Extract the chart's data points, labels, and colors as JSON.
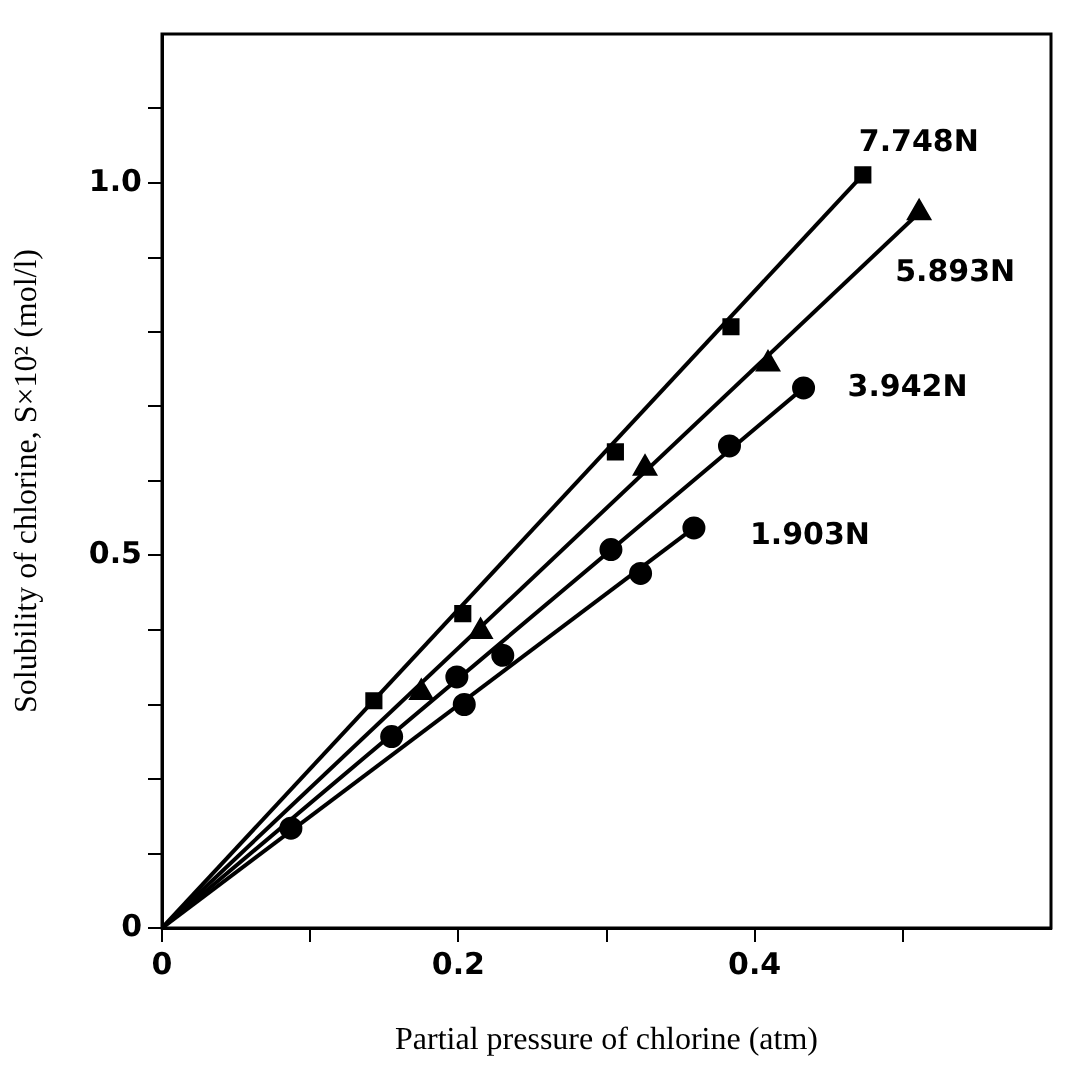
{
  "chart_data": {
    "type": "scatter",
    "xlabel": "Partial pressure of chlorine (atm)",
    "ylabel": "Solubility of chlorine, S×10² (mol/l)",
    "xlim": [
      0,
      0.6
    ],
    "ylim": [
      0,
      1.2
    ],
    "xticks": [
      0,
      {
        "value": 0.1,
        "label": null
      },
      {
        "value": 0.2,
        "label": "0.2"
      },
      {
        "value": 0.3,
        "label": null
      },
      {
        "value": 0.4,
        "label": "0.4"
      },
      {
        "value": 0.5,
        "label": null
      }
    ],
    "yticks": [
      0,
      {
        "value": 0.1,
        "label": null
      },
      {
        "value": 0.2,
        "label": null
      },
      {
        "value": 0.3,
        "label": null
      },
      {
        "value": 0.4,
        "label": null
      },
      {
        "value": 0.5,
        "label": "0.5"
      },
      {
        "value": 0.6,
        "label": null
      },
      {
        "value": 0.7,
        "label": null
      },
      {
        "value": 0.8,
        "label": null
      },
      {
        "value": 0.9,
        "label": null
      },
      {
        "value": 1,
        "label": "1.0"
      },
      {
        "value": 1.1,
        "label": null
      }
    ],
    "grid": false,
    "legend": false,
    "series": [
      {
        "name": "7.748N",
        "color": "#000000",
        "marker": "square",
        "x": [
          0.143,
          0.203,
          0.306,
          0.384,
          0.473
        ],
        "values": [
          0.305,
          0.422,
          0.639,
          0.807,
          1.011
        ]
      },
      {
        "name": "5.893N",
        "color": "#000000",
        "marker": "triangle",
        "x": [
          0.175,
          0.215,
          0.326,
          0.409,
          0.511
        ],
        "values": [
          0.316,
          0.398,
          0.617,
          0.757,
          0.96
        ]
      },
      {
        "name": "3.942N",
        "color": "#000000",
        "marker": "circle",
        "x": [
          0.155,
          0.199,
          0.303,
          0.383,
          0.433
        ],
        "values": [
          0.257,
          0.337,
          0.508,
          0.647,
          0.725
        ]
      },
      {
        "name": "1.903N",
        "color": "#000000",
        "marker": "circle",
        "x": [
          0.087,
          0.204,
          0.23,
          0.323,
          0.359
        ],
        "values": [
          0.134,
          0.3,
          0.366,
          0.476,
          0.537
        ]
      },
      {
        "type": "line",
        "color": "#000000",
        "x": [
          0,
          0.473
        ],
        "values": [
          0,
          1.011
        ]
      },
      {
        "type": "line",
        "color": "#000000",
        "x": [
          0,
          0.511
        ],
        "values": [
          0,
          0.96
        ]
      },
      {
        "type": "line",
        "color": "#000000",
        "x": [
          0,
          0.433
        ],
        "values": [
          0,
          0.725
        ]
      },
      {
        "type": "line",
        "color": "#000000",
        "x": [
          0,
          0.359
        ],
        "values": [
          0,
          0.537
        ]
      }
    ]
  }
}
